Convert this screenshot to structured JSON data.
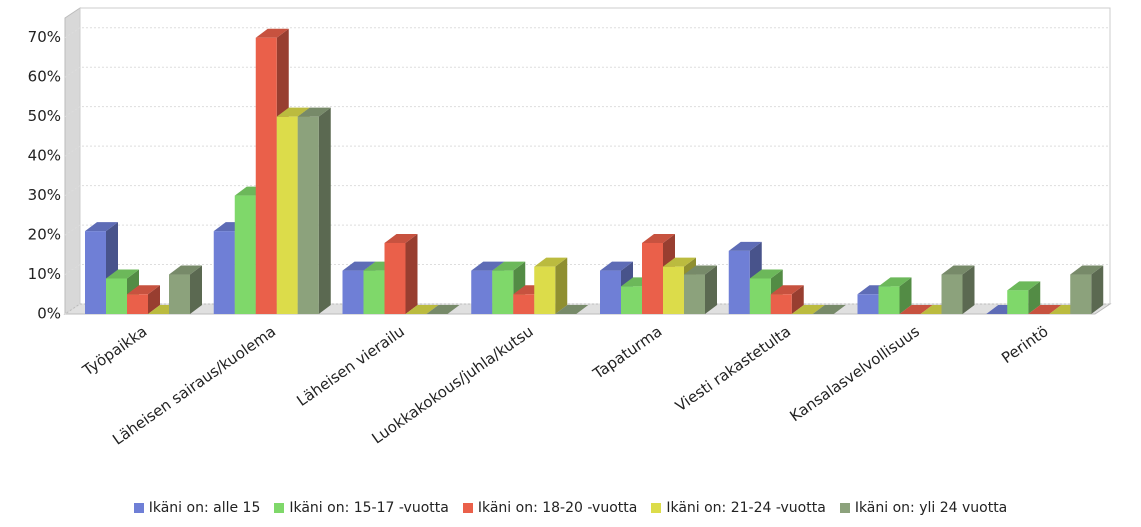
{
  "chart_data": {
    "type": "bar3d",
    "categories": [
      "Työpaikka",
      "Läheisen sairaus/kuolema",
      "Läheisen vierailu",
      "Luokkakokous/juhla/kutsu",
      "Tapaturma",
      "Viesti rakastetulta",
      "Kansalasvelvollisuus",
      "Perintö"
    ],
    "series": [
      {
        "name": "Ikäni on: alle 15",
        "color": "#6f7fd6",
        "values": [
          21,
          21,
          11,
          11,
          11,
          16,
          5,
          0
        ]
      },
      {
        "name": "Ikäni on: 15-17 -vuotta",
        "color": "#7fd86a",
        "values": [
          9,
          30,
          11,
          11,
          7,
          9,
          7,
          6
        ]
      },
      {
        "name": "Ikäni on: 18-20 -vuotta",
        "color": "#ea604a",
        "values": [
          5,
          70,
          18,
          5,
          18,
          5,
          0,
          0
        ]
      },
      {
        "name": "Ikäni on: 21-24 -vuotta",
        "color": "#dcdc4a",
        "values": [
          0,
          50,
          0,
          12,
          12,
          0,
          0,
          0
        ]
      },
      {
        "name": "Ikäni on: yli 24 vuotta",
        "color": "#8ca27c",
        "values": [
          10,
          50,
          0,
          0,
          10,
          0,
          10,
          10
        ]
      }
    ],
    "ylim": [
      0,
      75
    ],
    "yticks": [
      {
        "value": 0,
        "label": "0%"
      },
      {
        "value": 10,
        "label": "10%"
      },
      {
        "value": 20,
        "label": "20%"
      },
      {
        "value": 30,
        "label": "30%"
      },
      {
        "value": 40,
        "label": "40%"
      },
      {
        "value": 50,
        "label": "50%"
      },
      {
        "value": 60,
        "label": "60%"
      },
      {
        "value": 70,
        "label": "70%"
      }
    ],
    "grid": true
  }
}
